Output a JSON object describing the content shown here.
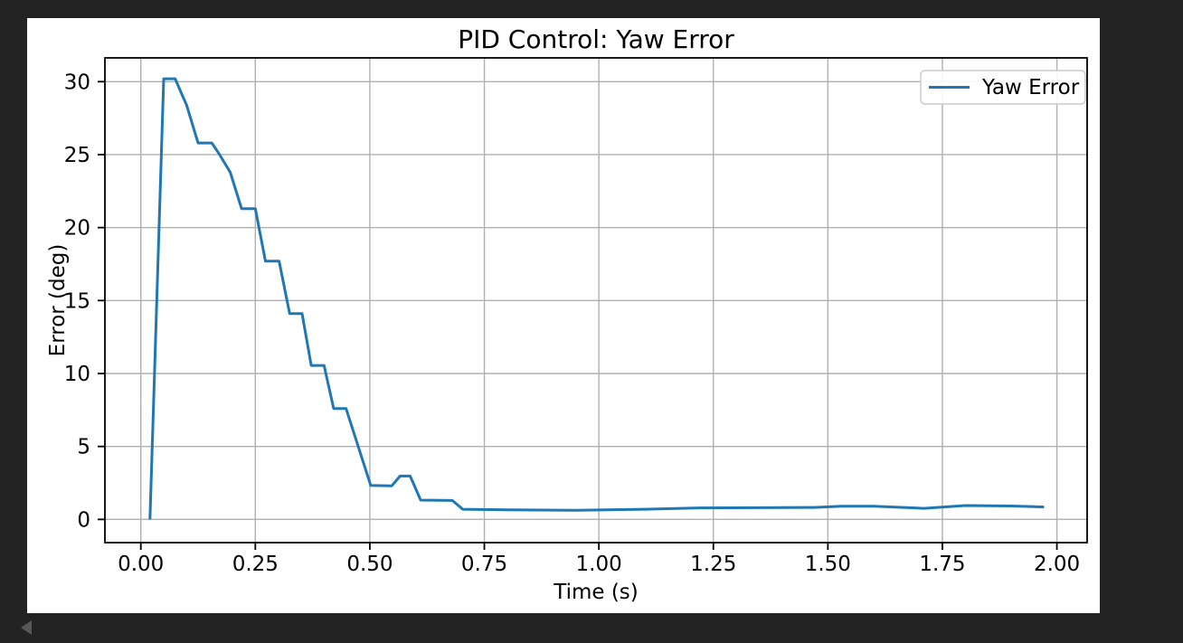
{
  "page": {
    "background_color": "#232323",
    "figure_background": "#ffffff"
  },
  "nav": {
    "back_icon": "left-triangle"
  },
  "chart_data": {
    "type": "line",
    "title": "PID Control: Yaw Error",
    "xlabel": "Time (s)",
    "ylabel": "Error (deg)",
    "grid": true,
    "legend": {
      "position": "upper right",
      "entries": [
        {
          "label": "Yaw Error",
          "color": "#1f77b4"
        }
      ]
    },
    "xlim": [
      -0.0784,
      2.066
    ],
    "ylim": [
      -1.59,
      31.63
    ],
    "xticks": {
      "values": [
        0,
        0.25,
        0.5,
        0.75,
        1.0,
        1.25,
        1.5,
        1.75,
        2.0
      ],
      "labels": [
        "0.00",
        "0.25",
        "0.50",
        "0.75",
        "1.00",
        "1.25",
        "1.50",
        "1.75",
        "2.00"
      ]
    },
    "yticks": {
      "values": [
        0,
        5,
        10,
        15,
        20,
        25,
        30
      ],
      "labels": [
        "0",
        "5",
        "10",
        "15",
        "20",
        "25",
        "30"
      ]
    },
    "colors": {
      "line": "#1f77b4",
      "grid": "#b0b0b0",
      "spine": "#000000",
      "text": "#000000",
      "legend_border": "#cccccc"
    },
    "series": [
      {
        "name": "Yaw Error",
        "color": "#1f77b4",
        "points": [
          [
            0.02,
            0.0
          ],
          [
            0.05,
            30.2
          ],
          [
            0.075,
            30.2
          ],
          [
            0.09,
            29.1
          ],
          [
            0.1,
            28.4
          ],
          [
            0.125,
            25.8
          ],
          [
            0.155,
            25.8
          ],
          [
            0.17,
            25.1
          ],
          [
            0.195,
            23.8
          ],
          [
            0.22,
            21.3
          ],
          [
            0.25,
            21.3
          ],
          [
            0.272,
            17.7
          ],
          [
            0.302,
            17.7
          ],
          [
            0.325,
            14.1
          ],
          [
            0.352,
            14.1
          ],
          [
            0.372,
            10.55
          ],
          [
            0.4,
            10.55
          ],
          [
            0.421,
            7.6
          ],
          [
            0.448,
            7.6
          ],
          [
            0.502,
            2.33
          ],
          [
            0.548,
            2.3
          ],
          [
            0.566,
            2.97
          ],
          [
            0.588,
            2.97
          ],
          [
            0.611,
            1.32
          ],
          [
            0.68,
            1.3
          ],
          [
            0.703,
            0.7
          ],
          [
            0.8,
            0.66
          ],
          [
            0.95,
            0.63
          ],
          [
            1.1,
            0.7
          ],
          [
            1.22,
            0.79
          ],
          [
            1.35,
            0.8
          ],
          [
            1.47,
            0.82
          ],
          [
            1.53,
            0.9
          ],
          [
            1.6,
            0.9
          ],
          [
            1.71,
            0.76
          ],
          [
            1.8,
            0.95
          ],
          [
            1.9,
            0.92
          ],
          [
            1.972,
            0.85
          ]
        ]
      }
    ]
  }
}
